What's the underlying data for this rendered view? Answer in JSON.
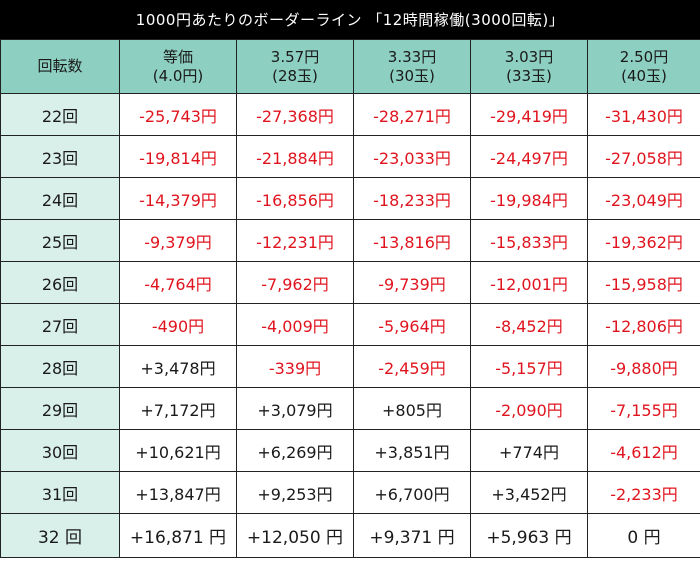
{
  "title": "1000円あたりのボーダーライン 「12時間稼働(3000回転)」",
  "header": {
    "row_header": "回転数",
    "columns": [
      {
        "line1": "等価",
        "line2": "(4.0円)"
      },
      {
        "line1": "3.57円",
        "line2": "(28玉)"
      },
      {
        "line1": "3.33円",
        "line2": "(30玉)"
      },
      {
        "line1": "3.03円",
        "line2": "(33玉)"
      },
      {
        "line1": "2.50円",
        "line2": "(40玉)"
      }
    ]
  },
  "rows": [
    {
      "label": "22回",
      "cells": [
        "-25,743円",
        "-27,368円",
        "-28,271円",
        "-29,419円",
        "-31,430円"
      ]
    },
    {
      "label": "23回",
      "cells": [
        "-19,814円",
        "-21,884円",
        "-23,033円",
        "-24,497円",
        "-27,058円"
      ]
    },
    {
      "label": "24回",
      "cells": [
        "-14,379円",
        "-16,856円",
        "-18,233円",
        "-19,984円",
        "-23,049円"
      ]
    },
    {
      "label": "25回",
      "cells": [
        "-9,379円",
        "-12,231円",
        "-13,816円",
        "-15,833円",
        "-19,362円"
      ]
    },
    {
      "label": "26回",
      "cells": [
        "-4,764円",
        "-7,962円",
        "-9,739円",
        "-12,001円",
        "-15,958円"
      ]
    },
    {
      "label": "27回",
      "cells": [
        "-490円",
        "-4,009円",
        "-5,964円",
        "-8,452円",
        "-12,806円"
      ]
    },
    {
      "label": "28回",
      "cells": [
        "+3,478円",
        "-339円",
        "-2,459円",
        "-5,157円",
        "-9,880円"
      ]
    },
    {
      "label": "29回",
      "cells": [
        "+7,172円",
        "+3,079円",
        "+805円",
        "-2,090円",
        "-7,155円"
      ]
    },
    {
      "label": "30回",
      "cells": [
        "+10,621円",
        "+6,269円",
        "+3,851円",
        "+774円",
        "-4,612円"
      ]
    },
    {
      "label": "31回",
      "cells": [
        "+13,847円",
        "+9,253円",
        "+6,700円",
        "+3,452円",
        "-2,233円"
      ]
    },
    {
      "label": "32 回",
      "cells": [
        "+16,871 円",
        "+12,050 円",
        "+9,371 円",
        "+5,963 円",
        "0 円"
      ]
    }
  ],
  "colors": {
    "title_bg": "#000000",
    "header_bg": "#8dcfc0",
    "row_header_bg": "#d9efea",
    "negative_text": "#e0141e",
    "positive_text": "#1a1a1a"
  }
}
